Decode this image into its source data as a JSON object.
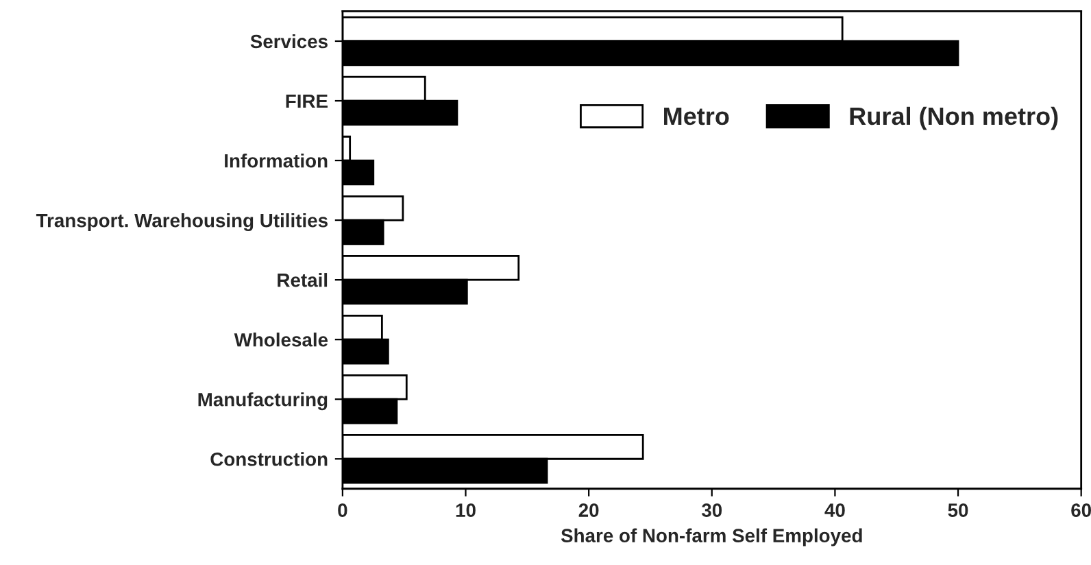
{
  "chart_data": {
    "type": "bar",
    "orientation": "horizontal",
    "xlabel": "Share of Non-farm Self Employed",
    "categories": [
      "Services",
      "FIRE",
      "Information",
      "Transport. Warehousing Utilities",
      "Retail",
      "Wholesale",
      "Manufacturing",
      "Construction"
    ],
    "series": [
      {
        "name": "Metro",
        "color": "#ffffff",
        "values": [
          40.6,
          6.7,
          0.6,
          4.9,
          14.3,
          3.2,
          5.2,
          24.4
        ]
      },
      {
        "name": "Rural (Non metro)",
        "color": "#000000",
        "values": [
          50.0,
          9.3,
          2.5,
          3.3,
          10.1,
          3.7,
          4.4,
          16.6
        ]
      }
    ],
    "xlim": [
      0,
      60
    ],
    "xticks": [
      0,
      10,
      20,
      30,
      40,
      50,
      60
    ],
    "grid": false,
    "legend": "top right"
  }
}
